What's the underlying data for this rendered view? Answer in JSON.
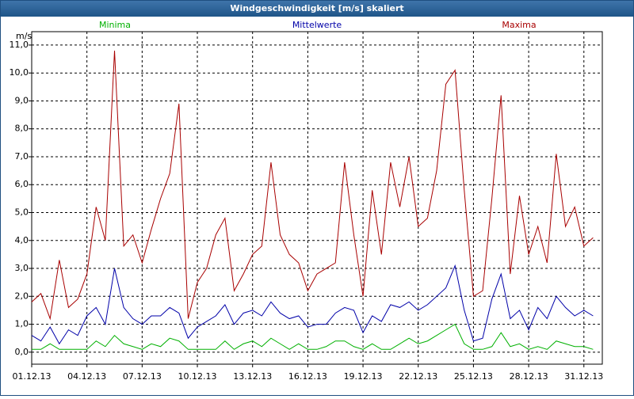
{
  "chart_data": {
    "type": "line",
    "title": "Windgeschwindigkeit [m/s] skaliert",
    "y_label": "m/s",
    "x": [
      0,
      0.5,
      1,
      1.5,
      2,
      2.5,
      3,
      3.5,
      4,
      4.5,
      5,
      5.5,
      6,
      6.5,
      7,
      7.5,
      8,
      8.5,
      9,
      9.5,
      10,
      10.5,
      11,
      11.5,
      12,
      12.5,
      13,
      13.5,
      14,
      14.5,
      15,
      15.5,
      16,
      16.5,
      17,
      17.5,
      18,
      18.5,
      19,
      19.5,
      20,
      20.5,
      21,
      21.5,
      22,
      22.5,
      23,
      23.5,
      24,
      24.5,
      25,
      25.5,
      26,
      26.5,
      27,
      27.5,
      28,
      28.5,
      29,
      29.5,
      30,
      30.5
    ],
    "xlim": [
      0,
      31
    ],
    "xticks": [
      {
        "value": 0,
        "label": "01.12.13"
      },
      {
        "value": 3,
        "label": "04.12.13"
      },
      {
        "value": 6,
        "label": "07.12.13"
      },
      {
        "value": 9,
        "label": "10.12.13"
      },
      {
        "value": 12,
        "label": "13.12.13"
      },
      {
        "value": 15,
        "label": "16.12.13"
      },
      {
        "value": 18,
        "label": "19.12.13"
      },
      {
        "value": 21,
        "label": "22.12.13"
      },
      {
        "value": 24,
        "label": "25.12.13"
      },
      {
        "value": 27,
        "label": "28.12.13"
      },
      {
        "value": 30,
        "label": "31.12.13"
      }
    ],
    "ylim": [
      -0.43,
      11.48
    ],
    "yticks": [
      {
        "value": 0,
        "label": "0,0"
      },
      {
        "value": 1,
        "label": "1,0"
      },
      {
        "value": 2,
        "label": "2,0"
      },
      {
        "value": 3,
        "label": "3,0"
      },
      {
        "value": 4,
        "label": "4,0"
      },
      {
        "value": 5,
        "label": "5,0"
      },
      {
        "value": 6,
        "label": "6,0"
      },
      {
        "value": 7,
        "label": "7,0"
      },
      {
        "value": 8,
        "label": "8,0"
      },
      {
        "value": 9,
        "label": "9,0"
      },
      {
        "value": 10,
        "label": "10,0"
      },
      {
        "value": 11,
        "label": "11,0"
      }
    ],
    "grid": true,
    "series": [
      {
        "name": "Minima",
        "color": "#00b000",
        "values": [
          0.1,
          0.1,
          0.3,
          0.1,
          0.1,
          0.1,
          0.1,
          0.4,
          0.2,
          0.6,
          0.3,
          0.2,
          0.1,
          0.3,
          0.2,
          0.5,
          0.4,
          0.1,
          0.1,
          0.1,
          0.1,
          0.4,
          0.1,
          0.3,
          0.4,
          0.2,
          0.5,
          0.3,
          0.1,
          0.3,
          0.1,
          0.1,
          0.2,
          0.4,
          0.4,
          0.2,
          0.1,
          0.3,
          0.1,
          0.1,
          0.3,
          0.5,
          0.3,
          0.4,
          0.6,
          0.8,
          1.0,
          0.3,
          0.1,
          0.1,
          0.2,
          0.7,
          0.2,
          0.3,
          0.1,
          0.2,
          0.1,
          0.4,
          0.3,
          0.2,
          0.2,
          0.1
        ]
      },
      {
        "name": "Mittelwerte",
        "color": "#0000a8",
        "values": [
          0.6,
          0.4,
          0.9,
          0.3,
          0.8,
          0.6,
          1.3,
          1.6,
          1.0,
          3.0,
          1.6,
          1.2,
          1.0,
          1.3,
          1.3,
          1.6,
          1.4,
          0.5,
          0.9,
          1.1,
          1.3,
          1.7,
          1.0,
          1.4,
          1.5,
          1.3,
          1.8,
          1.4,
          1.2,
          1.3,
          0.9,
          1.0,
          1.0,
          1.4,
          1.6,
          1.5,
          0.7,
          1.3,
          1.1,
          1.7,
          1.6,
          1.8,
          1.5,
          1.7,
          2.0,
          2.3,
          3.1,
          1.5,
          0.4,
          0.5,
          1.9,
          2.8,
          1.2,
          1.5,
          0.8,
          1.6,
          1.2,
          2.0,
          1.6,
          1.3,
          1.5,
          1.3
        ]
      },
      {
        "name": "Maxima",
        "color": "#a80000",
        "values": [
          1.8,
          2.1,
          1.2,
          3.3,
          1.6,
          1.9,
          2.8,
          5.2,
          4.0,
          10.8,
          3.8,
          4.2,
          3.2,
          4.4,
          5.5,
          6.4,
          8.9,
          1.2,
          2.5,
          3.0,
          4.2,
          4.8,
          2.2,
          2.8,
          3.5,
          3.8,
          6.8,
          4.2,
          3.5,
          3.2,
          2.2,
          2.8,
          3.0,
          3.2,
          6.8,
          4.2,
          2.0,
          5.8,
          3.5,
          6.8,
          5.2,
          7.0,
          4.5,
          4.8,
          6.5,
          9.6,
          10.1,
          5.8,
          2.0,
          2.2,
          5.5,
          9.2,
          2.8,
          5.6,
          3.5,
          4.5,
          3.2,
          7.1,
          4.5,
          5.2,
          3.8,
          4.1
        ]
      }
    ]
  }
}
